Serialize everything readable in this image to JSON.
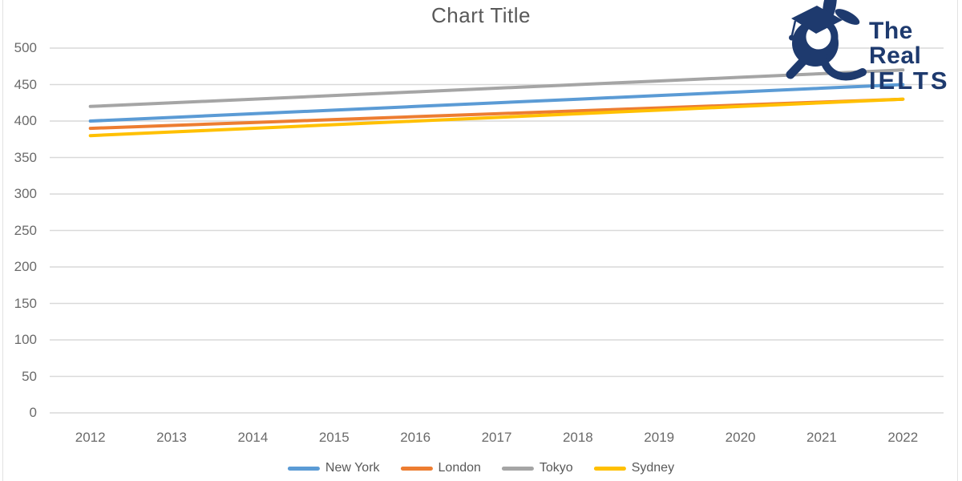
{
  "title": "Chart Title",
  "logo": {
    "line1": "The Real",
    "line2": "IELTS",
    "color": "#1e3a6e",
    "mascot": "graduate-rabbit-mascot-icon"
  },
  "chart_data": {
    "type": "line",
    "title": "Chart Title",
    "x": [
      "2012",
      "2013",
      "2014",
      "2015",
      "2016",
      "2017",
      "2018",
      "2019",
      "2020",
      "2021",
      "2022"
    ],
    "series": [
      {
        "name": "New York",
        "color": "#5B9BD5",
        "values": [
          400,
          405,
          410,
          415,
          420,
          425,
          430,
          435,
          440,
          445,
          450
        ]
      },
      {
        "name": "London",
        "color": "#ED7D31",
        "values": [
          390,
          394,
          398,
          402,
          406,
          410,
          414,
          418,
          422,
          426,
          430
        ]
      },
      {
        "name": "Tokyo",
        "color": "#A5A5A5",
        "values": [
          420,
          425,
          430,
          435,
          440,
          445,
          450,
          455,
          460,
          465,
          470
        ]
      },
      {
        "name": "Sydney",
        "color": "#FFC000",
        "values": [
          380,
          385,
          390,
          395,
          400,
          405,
          410,
          415,
          420,
          425,
          430
        ]
      }
    ],
    "xlabel": "",
    "ylabel": "",
    "ylim": [
      0,
      500
    ],
    "ytick_step": 50,
    "yticks": [
      0,
      50,
      100,
      150,
      200,
      250,
      300,
      350,
      400,
      450,
      500
    ],
    "grid": true,
    "grid_color": "#d9d9d9",
    "axis_text_color": "#6a6a6a",
    "legend_position": "bottom",
    "legend": [
      "New York",
      "London",
      "Tokyo",
      "Sydney"
    ]
  }
}
